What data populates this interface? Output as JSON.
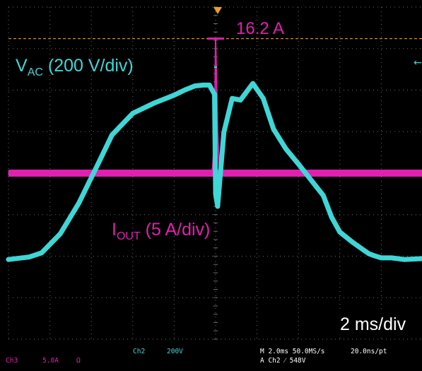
{
  "chart_data": {
    "type": "line",
    "title": "",
    "xlabel": "",
    "ylabel": "",
    "grid": true,
    "grid_divisions": {
      "x": 10,
      "y": 8
    },
    "time_per_div_ms": 2,
    "series": [
      {
        "name": "V_AC",
        "color": "#3fd6d6",
        "unit_label": "200 V/div",
        "div_per_unit": 0.005,
        "x_ms": [
          -10.0,
          -9.0,
          -8.4,
          -7.5,
          -6.6,
          -5.6,
          -5.0,
          -4.0,
          -3.0,
          -2.0,
          -1.5,
          -1.0,
          -0.6,
          -0.3,
          -0.05,
          0.0,
          0.1,
          0.4,
          0.8,
          1.2,
          1.5,
          1.8,
          2.3,
          2.8,
          3.4,
          4.0,
          4.6,
          5.2,
          5.6,
          6.0,
          6.6,
          7.0,
          7.4,
          7.6,
          8.0,
          8.5,
          9.1,
          10.0
        ],
        "y_v": [
          -416,
          -404,
          -384,
          -292,
          -144,
          60,
          184,
          288,
          336,
          376,
          400,
          420,
          424,
          424,
          380,
          -100,
          -160,
          196,
          360,
          352,
          392,
          432,
          360,
          212,
          116,
          44,
          -32,
          -108,
          -212,
          -284,
          -332,
          -360,
          -388,
          -396,
          -408,
          -408,
          -416,
          -412
        ]
      },
      {
        "name": "I_OUT",
        "color": "#e020b0",
        "unit_label": "5 A/div",
        "div_per_unit": 0.2,
        "x_ms": [
          -10.0,
          -0.3,
          -0.15,
          -0.05,
          0.0,
          0.1,
          0.2,
          0.3,
          10.0
        ],
        "y_a": [
          0.0,
          0.0,
          0.5,
          4.0,
          16.2,
          5.0,
          -1.0,
          0.0,
          0.0
        ]
      }
    ],
    "annotations": {
      "peak_current": "16.2 A",
      "vac_label_main": "V",
      "vac_label_sub": "AC",
      "vac_label_rest": " (200 V/div)",
      "iout_label_main": "I",
      "iout_label_sub": "OUT",
      "iout_label_rest": " (5 A/div)",
      "timebase": "2 ms/div"
    }
  },
  "status_bar": {
    "ch3_name": "Ch3",
    "ch3_scale": "5.0A",
    "ch3_coupling": "Ω",
    "ch2_name": "Ch2",
    "ch2_scale": "200V",
    "horiz": "M 2.0ms 50.0MS/s",
    "record": "20.0ns/pt",
    "trigger": "A  Ch2  ⁄  548V"
  },
  "colors": {
    "screen_bg": "#000000",
    "grid": "#6b6b6b",
    "trigger_marker": "#e8a020",
    "status_cyan": "#3fd6d6",
    "status_magenta": "#e020b0",
    "status_white": "#ffffff"
  }
}
